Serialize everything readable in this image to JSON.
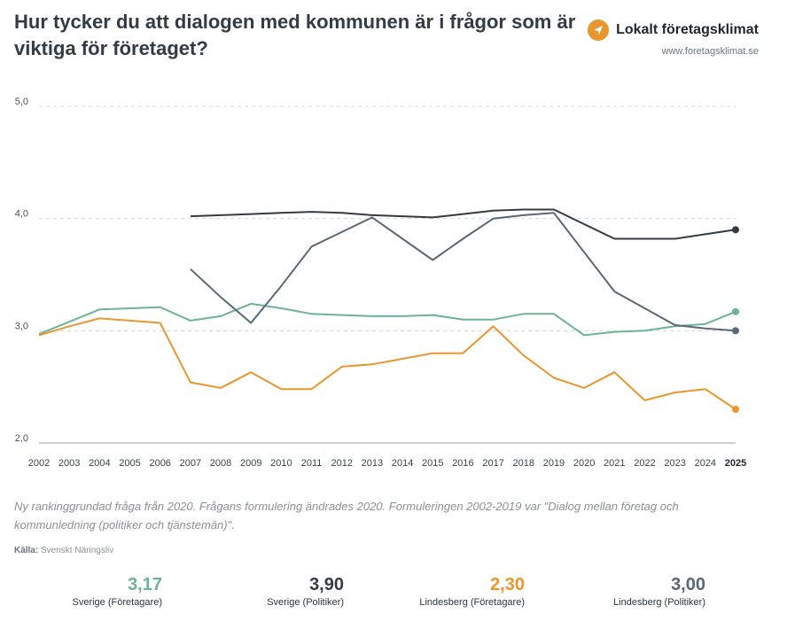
{
  "header": {
    "title": "Hur tycker du att dialogen med kommunen är i frågor som är viktiga för företaget?",
    "brand_name": "Lokalt företagsklimat",
    "brand_url": "www.foretagsklimat.se",
    "logo_icon": "arrow-logo-icon"
  },
  "footnote": "Ny rankinggrundad fråga från 2020. Frågans formulering ändrades 2020. Formuleringen 2002-2019 var \"Dialog mellan företag och kommunledning (politiker och tjänstemän)\".",
  "source": {
    "label": "Källa:",
    "value": "Svenskt Näringsliv"
  },
  "chart_data": {
    "type": "line",
    "x": [
      2002,
      2003,
      2004,
      2005,
      2006,
      2007,
      2008,
      2009,
      2010,
      2011,
      2012,
      2013,
      2014,
      2015,
      2016,
      2017,
      2018,
      2019,
      2020,
      2021,
      2022,
      2023,
      2024,
      2025
    ],
    "x_tick_labels": [
      "2002",
      "2003",
      "2004",
      "2005",
      "2006",
      "2007",
      "2008",
      "2009",
      "2010",
      "2011",
      "2012",
      "2013",
      "2014",
      "2015",
      "2016",
      "2017",
      "2018",
      "2019",
      "2020",
      "2021",
      "2022",
      "2023",
      "2024",
      "2025"
    ],
    "y_tick_labels": [
      "5,0",
      "4,0",
      "3,0",
      "2,0"
    ],
    "y_ticks": [
      5,
      4,
      3,
      2
    ],
    "ylim": [
      2,
      5
    ],
    "grid": "horizontal dashed",
    "highlight_last_x": true,
    "series": [
      {
        "name": "Sverige (Företagare)",
        "color": "#6db394",
        "values": [
          2.97,
          3.08,
          3.19,
          3.2,
          3.21,
          3.09,
          3.13,
          3.24,
          3.2,
          3.15,
          3.14,
          3.13,
          3.13,
          3.14,
          3.1,
          3.1,
          3.15,
          3.15,
          2.96,
          2.99,
          3.0,
          3.04,
          3.06,
          3.17
        ]
      },
      {
        "name": "Sverige (Politiker)",
        "color": "#333b45",
        "values": [
          null,
          null,
          null,
          null,
          null,
          4.02,
          4.03,
          4.04,
          4.05,
          4.06,
          4.05,
          4.03,
          4.02,
          4.01,
          4.04,
          4.07,
          4.08,
          4.08,
          3.95,
          3.82,
          3.82,
          3.82,
          3.86,
          3.9
        ]
      },
      {
        "name": "Lindesberg (Företagare)",
        "color": "#e8962e",
        "values": [
          2.96,
          3.04,
          3.11,
          3.09,
          3.07,
          2.54,
          2.49,
          2.63,
          2.48,
          2.48,
          2.68,
          2.7,
          2.75,
          2.8,
          2.8,
          3.04,
          2.78,
          2.58,
          2.49,
          2.63,
          2.38,
          2.45,
          2.48,
          2.3
        ]
      },
      {
        "name": "Lindesberg (Politiker)",
        "color": "#5a6776",
        "values": [
          null,
          null,
          null,
          null,
          null,
          3.55,
          3.3,
          3.07,
          3.4,
          3.75,
          3.88,
          4.01,
          3.82,
          3.63,
          3.82,
          4.0,
          4.03,
          4.05,
          3.7,
          3.35,
          3.2,
          3.05,
          3.02,
          3.0
        ]
      }
    ]
  },
  "summary": [
    {
      "value": "3,17",
      "label": "Sverige (Företagare)",
      "color": "#6db394"
    },
    {
      "value": "3,90",
      "label": "Sverige (Politiker)",
      "color": "#333b45"
    },
    {
      "value": "2,30",
      "label": "Lindesberg (Företagare)",
      "color": "#e8962e"
    },
    {
      "value": "3,00",
      "label": "Lindesberg (Politiker)",
      "color": "#5a6776"
    }
  ]
}
